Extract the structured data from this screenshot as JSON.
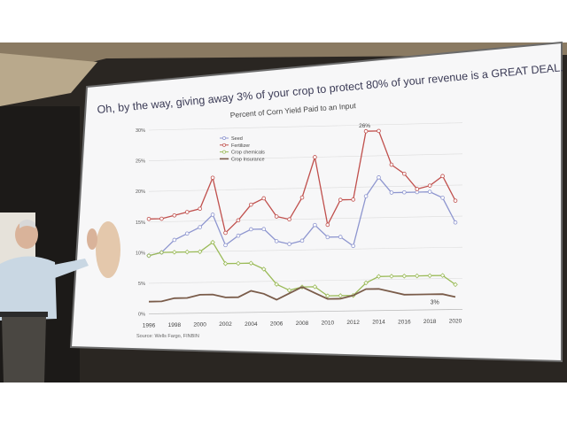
{
  "slide": {
    "headline": "Oh, by the way, giving away 3% of your crop to protect 80% of your revenue is a GREAT DEAL.",
    "source": "Source: Wells Fargo, FINBIN"
  },
  "chart_data": {
    "type": "line",
    "title": "Percent of Corn Yield Paid to an Input",
    "xlabel": "",
    "ylabel": "",
    "x": [
      1996,
      1997,
      1998,
      1999,
      2000,
      2001,
      2002,
      2003,
      2004,
      2005,
      2006,
      2007,
      2008,
      2009,
      2010,
      2011,
      2012,
      2013,
      2014,
      2015,
      2016,
      2017,
      2018,
      2019,
      2020
    ],
    "x_ticks": [
      "1996",
      "1998",
      "2000",
      "2002",
      "2004",
      "2006",
      "2008",
      "2010",
      "2012",
      "2014",
      "2016",
      "2018",
      "2020"
    ],
    "y_ticks": [
      "0%",
      "5%",
      "10%",
      "15%",
      "20%",
      "25%",
      "30%"
    ],
    "ylim": [
      0,
      30
    ],
    "grid": true,
    "legend_position": "top-left",
    "series": [
      {
        "name": "Seed",
        "color": "#8e96cf",
        "marker": "circle",
        "values": [
          9.5,
          10,
          12,
          13,
          14,
          16,
          11,
          12.5,
          13.5,
          13.5,
          11.5,
          11,
          11.5,
          14,
          12,
          12,
          10.5,
          18.5,
          21.5,
          19,
          19,
          19,
          19,
          18,
          14
        ]
      },
      {
        "name": "Fertilizer",
        "color": "#c0504d",
        "marker": "circle",
        "values": [
          15.5,
          15.5,
          16,
          16.5,
          17,
          22,
          13,
          15,
          17.5,
          18.5,
          15.5,
          15,
          18.5,
          25,
          14,
          18,
          18,
          29,
          29,
          23.5,
          22,
          19.5,
          20,
          21.5,
          17.5
        ]
      },
      {
        "name": "Crop chemicals",
        "color": "#9bbb59",
        "marker": "diamond",
        "values": [
          9.5,
          10,
          10,
          10,
          10,
          11.5,
          8,
          8,
          8,
          7,
          4.5,
          3.5,
          4,
          4,
          2.5,
          2.5,
          2.5,
          4.5,
          5.5,
          5.5,
          5.5,
          5.5,
          5.5,
          5.5,
          4
        ]
      },
      {
        "name": "Crop Insurance",
        "color": "#7a5c4a",
        "marker": "none",
        "values": [
          2,
          2,
          2.5,
          2.5,
          3,
          3,
          2.5,
          2.5,
          3.5,
          3,
          2,
          3,
          4,
          3,
          2,
          2,
          2.5,
          3.5,
          3.5,
          3,
          2.5,
          2.5,
          2.5,
          2.5,
          2
        ]
      }
    ],
    "annotations": [
      "26%",
      "3%"
    ]
  }
}
